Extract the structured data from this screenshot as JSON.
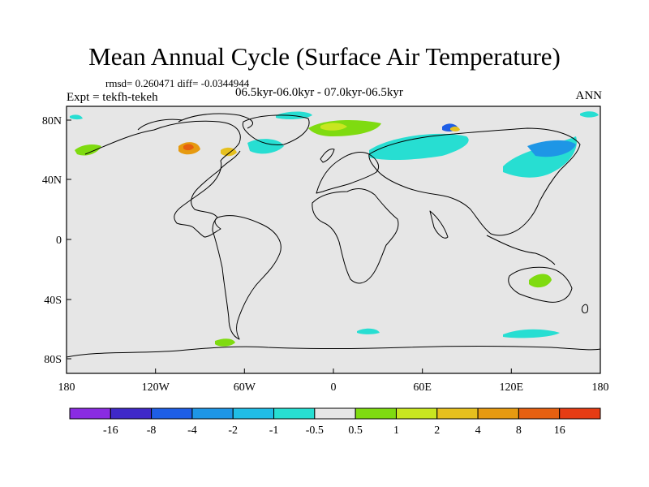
{
  "title": "Mean Annual Cycle (Surface Air Temperature)",
  "stats": "rmsd= 0.260471  diff= -0.0344944",
  "experiment": "Expt = tekfh-tekeh",
  "subtitle": "06.5kyr-06.0kyr - 07.0kyr-06.5kyr",
  "season": "ANN",
  "lat_ticks": [
    "80N",
    "40N",
    "0",
    "40S",
    "80S"
  ],
  "lon_ticks": [
    "180",
    "120W",
    "60W",
    "0",
    "60E",
    "120E",
    "180"
  ],
  "colorbar": {
    "colors": [
      "#8a2be2",
      "#3f28c8",
      "#1e5ee6",
      "#1e96e6",
      "#20bde6",
      "#27ded2",
      "#e6e6e6",
      "#7fdb10",
      "#c8e620",
      "#e6c01e",
      "#e69a10",
      "#e66010",
      "#e63c14"
    ],
    "labels": [
      "-16",
      "-8",
      "-4",
      "-2",
      "-1",
      "-0.5",
      "0.5",
      "1",
      "2",
      "4",
      "8",
      "16"
    ]
  },
  "colors": {
    "background": "#e6e6e6",
    "coast": "#000000"
  }
}
